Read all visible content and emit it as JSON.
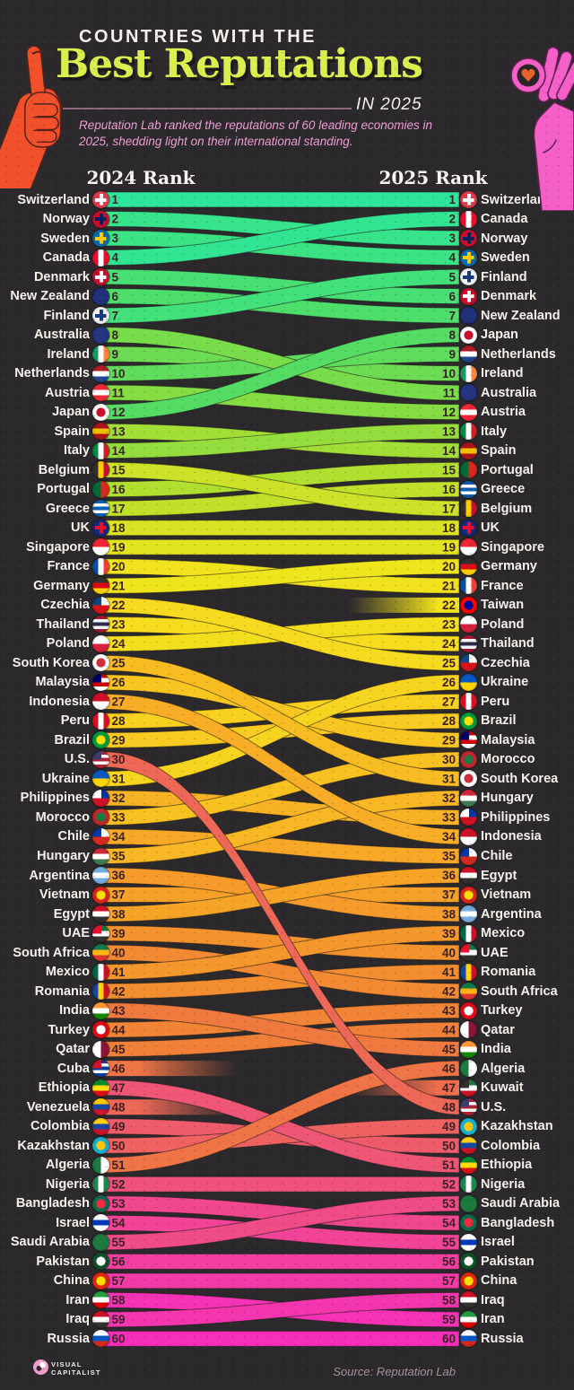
{
  "header": {
    "kicker": "COUNTRIES WITH THE",
    "title": "Best Reputations",
    "year_label": "IN 2025",
    "subtitle": "Reputation Lab ranked the reputations of 60 leading economies in 2025, shedding light on their international standing."
  },
  "columns": {
    "left": "2024 Rank",
    "right": "2025 Rank"
  },
  "footer": {
    "brand_line1": "VISUAL",
    "brand_line2": "CAPITALIST",
    "source": "Source: Reputation Lab"
  },
  "colors": {
    "background": "#2b292b",
    "title": "#dcee4e",
    "kicker": "#f3efe9",
    "subtitle": "#ec9fd3",
    "country_label": "#f5f2ec",
    "rank_number": "#3b2227",
    "ribbon_outline": "rgba(28,22,24,0.55)",
    "hand_left": "#f1502a",
    "hand_right": "#f55fc8",
    "heart": "#e8622c",
    "ramp": [
      [
        1,
        "#2de69b"
      ],
      [
        4,
        "#3ce384"
      ],
      [
        8,
        "#54dc64"
      ],
      [
        12,
        "#85dc43"
      ],
      [
        16,
        "#c0e02a"
      ],
      [
        20,
        "#efe51c"
      ],
      [
        25,
        "#f6da1f"
      ],
      [
        30,
        "#f8c122"
      ],
      [
        35,
        "#f7a827"
      ],
      [
        40,
        "#f3932d"
      ],
      [
        44,
        "#f08038"
      ],
      [
        47,
        "#ee6e4d"
      ],
      [
        50,
        "#ee5c6c"
      ],
      [
        53,
        "#ef4b87"
      ],
      [
        56,
        "#f23f9f"
      ],
      [
        58,
        "#f436ae"
      ],
      [
        60,
        "#f62eba"
      ]
    ]
  },
  "chart_data": {
    "type": "bump",
    "columns": [
      "2024 Rank",
      "2025 Rank"
    ],
    "note": "r2024/r2025 are ranks in each year; null means not ranked that year",
    "entries": [
      {
        "country": "Switzerland",
        "r2024": 1,
        "r2025": 1,
        "flag": {
          "t": "x",
          "c": [
            "#e03b4a",
            "#ffffff"
          ]
        }
      },
      {
        "country": "Norway",
        "r2024": 2,
        "r2025": 3,
        "flag": {
          "t": "x",
          "c": [
            "#c8102e",
            "#00205b"
          ]
        }
      },
      {
        "country": "Sweden",
        "r2024": 3,
        "r2025": 4,
        "flag": {
          "t": "x",
          "c": [
            "#0d6aa8",
            "#fecb00"
          ]
        }
      },
      {
        "country": "Canada",
        "r2024": 4,
        "r2025": 2,
        "flag": {
          "t": "v",
          "c": [
            "#e8112d",
            "#ffffff",
            "#e8112d"
          ]
        }
      },
      {
        "country": "Denmark",
        "r2024": 5,
        "r2025": 6,
        "flag": {
          "t": "x",
          "c": [
            "#c8102e",
            "#ffffff"
          ]
        }
      },
      {
        "country": "New Zealand",
        "r2024": 6,
        "r2025": 7,
        "flag": {
          "t": "s",
          "c": [
            "#21317c"
          ]
        }
      },
      {
        "country": "Finland",
        "r2024": 7,
        "r2025": 5,
        "flag": {
          "t": "x",
          "c": [
            "#f2f2f2",
            "#173a7c"
          ]
        }
      },
      {
        "country": "Australia",
        "r2024": 8,
        "r2025": 11,
        "flag": {
          "t": "s",
          "c": [
            "#25357f"
          ]
        }
      },
      {
        "country": "Ireland",
        "r2024": 9,
        "r2025": 10,
        "flag": {
          "t": "v",
          "c": [
            "#169b62",
            "#ffffff",
            "#ff883e"
          ]
        }
      },
      {
        "country": "Netherlands",
        "r2024": 10,
        "r2025": 9,
        "flag": {
          "t": "h",
          "c": [
            "#ae1c28",
            "#ffffff",
            "#21468b"
          ]
        }
      },
      {
        "country": "Austria",
        "r2024": 11,
        "r2025": 12,
        "flag": {
          "t": "h",
          "c": [
            "#ed2939",
            "#ffffff",
            "#ed2939"
          ]
        }
      },
      {
        "country": "Japan",
        "r2024": 12,
        "r2025": 8,
        "flag": {
          "t": "d",
          "c": [
            "#ffffff",
            "#c8102e"
          ]
        }
      },
      {
        "country": "Spain",
        "r2024": 13,
        "r2025": 14,
        "flag": {
          "t": "h",
          "c": [
            "#aa151b",
            "#f1bf00",
            "#aa151b"
          ]
        }
      },
      {
        "country": "Italy",
        "r2024": 14,
        "r2025": 13,
        "flag": {
          "t": "v",
          "c": [
            "#008c45",
            "#ffffff",
            "#cd212a"
          ]
        }
      },
      {
        "country": "Belgium",
        "r2024": 15,
        "r2025": 17,
        "flag": {
          "t": "v",
          "c": [
            "#33312e",
            "#ffcd00",
            "#c8102e"
          ]
        }
      },
      {
        "country": "Portugal",
        "r2024": 16,
        "r2025": 15,
        "flag": {
          "t": "v",
          "c": [
            "#046a38",
            "#da291c"
          ]
        }
      },
      {
        "country": "Greece",
        "r2024": 17,
        "r2025": 16,
        "flag": {
          "t": "h",
          "c": [
            "#0d5eaf",
            "#ffffff",
            "#0d5eaf",
            "#ffffff",
            "#0d5eaf"
          ]
        }
      },
      {
        "country": "UK",
        "r2024": 18,
        "r2025": 18,
        "flag": {
          "t": "x",
          "c": [
            "#13297c",
            "#e8112d"
          ]
        }
      },
      {
        "country": "Singapore",
        "r2024": 19,
        "r2025": 19,
        "flag": {
          "t": "h",
          "c": [
            "#ee2536",
            "#ffffff"
          ]
        }
      },
      {
        "country": "France",
        "r2024": 20,
        "r2025": 21,
        "flag": {
          "t": "v",
          "c": [
            "#0a4fa0",
            "#ffffff",
            "#ef4135"
          ]
        }
      },
      {
        "country": "Germany",
        "r2024": 21,
        "r2025": 20,
        "flag": {
          "t": "h",
          "c": [
            "#33312e",
            "#dd0b15",
            "#ffce00"
          ]
        }
      },
      {
        "country": "Czechia",
        "r2024": 22,
        "r2025": 25,
        "flag": {
          "t": "h",
          "c": [
            "#ffffff",
            "#d7141a"
          ],
          "k": "#11457e"
        }
      },
      {
        "country": "Thailand",
        "r2024": 23,
        "r2025": 24,
        "flag": {
          "t": "h",
          "c": [
            "#a51931",
            "#f4f5f8",
            "#2d2a4a",
            "#f4f5f8",
            "#a51931"
          ]
        }
      },
      {
        "country": "Poland",
        "r2024": 24,
        "r2025": 23,
        "flag": {
          "t": "h",
          "c": [
            "#ffffff",
            "#d4213d"
          ]
        }
      },
      {
        "country": "South Korea",
        "r2024": 25,
        "r2025": 31,
        "flag": {
          "t": "d",
          "c": [
            "#ffffff",
            "#cd2e3a"
          ]
        }
      },
      {
        "country": "Malaysia",
        "r2024": 26,
        "r2025": 29,
        "flag": {
          "t": "h",
          "c": [
            "#cc0001",
            "#ffffff",
            "#cc0001",
            "#ffffff"
          ],
          "k": "#010066"
        }
      },
      {
        "country": "Indonesia",
        "r2024": 27,
        "r2025": 34,
        "flag": {
          "t": "h",
          "c": [
            "#ce1126",
            "#ffffff"
          ]
        }
      },
      {
        "country": "Peru",
        "r2024": 28,
        "r2025": 27,
        "flag": {
          "t": "v",
          "c": [
            "#d91023",
            "#ffffff",
            "#d91023"
          ]
        }
      },
      {
        "country": "Brazil",
        "r2024": 29,
        "r2025": 28,
        "flag": {
          "t": "d",
          "c": [
            "#009c3b",
            "#ffdf00"
          ]
        }
      },
      {
        "country": "U.S.",
        "r2024": 30,
        "r2025": 48,
        "flag": {
          "t": "h",
          "c": [
            "#b22234",
            "#ffffff",
            "#b22234",
            "#ffffff",
            "#b22234"
          ],
          "k": "#3c3b6e"
        }
      },
      {
        "country": "Ukraine",
        "r2024": 31,
        "r2025": 26,
        "flag": {
          "t": "h",
          "c": [
            "#0a57c2",
            "#ffd500"
          ]
        }
      },
      {
        "country": "Philippines",
        "r2024": 32,
        "r2025": 33,
        "flag": {
          "t": "h",
          "c": [
            "#0038a8",
            "#ce1126"
          ],
          "k": "#ffffff"
        }
      },
      {
        "country": "Morocco",
        "r2024": 33,
        "r2025": 30,
        "flag": {
          "t": "d",
          "c": [
            "#c1272d",
            "#1d7a43"
          ]
        }
      },
      {
        "country": "Chile",
        "r2024": 34,
        "r2025": 35,
        "flag": {
          "t": "h",
          "c": [
            "#ffffff",
            "#d52b1e"
          ],
          "k": "#0039a6"
        }
      },
      {
        "country": "Hungary",
        "r2024": 35,
        "r2025": 32,
        "flag": {
          "t": "h",
          "c": [
            "#ce2939",
            "#ffffff",
            "#3e7a52"
          ]
        }
      },
      {
        "country": "Argentina",
        "r2024": 36,
        "r2025": 38,
        "flag": {
          "t": "h",
          "c": [
            "#74acdf",
            "#ffffff",
            "#74acdf"
          ]
        }
      },
      {
        "country": "Vietnam",
        "r2024": 37,
        "r2025": 37,
        "flag": {
          "t": "d",
          "c": [
            "#da251d",
            "#ffde00"
          ]
        }
      },
      {
        "country": "Egypt",
        "r2024": 38,
        "r2025": 36,
        "flag": {
          "t": "h",
          "c": [
            "#ce1126",
            "#ffffff",
            "#33312e"
          ]
        }
      },
      {
        "country": "UAE",
        "r2024": 39,
        "r2025": 40,
        "flag": {
          "t": "h",
          "c": [
            "#0f7a40",
            "#ffffff",
            "#33312e"
          ],
          "k": "#e8112d"
        }
      },
      {
        "country": "South Africa",
        "r2024": 40,
        "r2025": 42,
        "flag": {
          "t": "h",
          "c": [
            "#0f7a4b",
            "#ffb612",
            "#de3831"
          ]
        }
      },
      {
        "country": "Mexico",
        "r2024": 41,
        "r2025": 39,
        "flag": {
          "t": "v",
          "c": [
            "#006847",
            "#ffffff",
            "#ce1126"
          ]
        }
      },
      {
        "country": "Romania",
        "r2024": 42,
        "r2025": 41,
        "flag": {
          "t": "v",
          "c": [
            "#1747a0",
            "#fcd116",
            "#ce1126"
          ]
        }
      },
      {
        "country": "India",
        "r2024": 43,
        "r2025": 45,
        "flag": {
          "t": "h",
          "c": [
            "#ff9933",
            "#ffffff",
            "#138808"
          ]
        }
      },
      {
        "country": "Turkey",
        "r2024": 44,
        "r2025": 43,
        "flag": {
          "t": "d",
          "c": [
            "#e30a17",
            "#ffffff"
          ]
        }
      },
      {
        "country": "Qatar",
        "r2024": 45,
        "r2025": 44,
        "flag": {
          "t": "v",
          "c": [
            "#ffffff",
            "#8a1538"
          ]
        }
      },
      {
        "country": "Cuba",
        "r2024": 46,
        "r2025": null,
        "flag": {
          "t": "h",
          "c": [
            "#0a3f9e",
            "#ffffff",
            "#0a3f9e",
            "#ffffff",
            "#0a3f9e"
          ],
          "k": "#cf142b"
        }
      },
      {
        "country": "Ethiopia",
        "r2024": 47,
        "r2025": 51,
        "flag": {
          "t": "h",
          "c": [
            "#078930",
            "#fcdd09",
            "#da121a"
          ]
        }
      },
      {
        "country": "Venezuela",
        "r2024": 48,
        "r2025": null,
        "flag": {
          "t": "h",
          "c": [
            "#ffcc00",
            "#1847a0",
            "#cf142b"
          ]
        }
      },
      {
        "country": "Colombia",
        "r2024": 49,
        "r2025": 50,
        "flag": {
          "t": "h",
          "c": [
            "#fcd116",
            "#1747a0",
            "#ce1126"
          ]
        }
      },
      {
        "country": "Kazakhstan",
        "r2024": 50,
        "r2025": 49,
        "flag": {
          "t": "d",
          "c": [
            "#18b2cf",
            "#fec50c"
          ]
        }
      },
      {
        "country": "Algeria",
        "r2024": 51,
        "r2025": 46,
        "flag": {
          "t": "v",
          "c": [
            "#1d7a43",
            "#ffffff"
          ]
        }
      },
      {
        "country": "Nigeria",
        "r2024": 52,
        "r2025": 52,
        "flag": {
          "t": "v",
          "c": [
            "#1f8751",
            "#ffffff",
            "#1f8751"
          ]
        }
      },
      {
        "country": "Bangladesh",
        "r2024": 53,
        "r2025": 54,
        "flag": {
          "t": "d",
          "c": [
            "#0f6a4e",
            "#f42a41"
          ]
        }
      },
      {
        "country": "Israel",
        "r2024": 54,
        "r2025": 55,
        "flag": {
          "t": "h",
          "c": [
            "#ffffff",
            "#0038b8",
            "#ffffff"
          ]
        }
      },
      {
        "country": "Saudi Arabia",
        "r2024": 55,
        "r2025": 53,
        "flag": {
          "t": "s",
          "c": [
            "#1d7a3f"
          ]
        }
      },
      {
        "country": "Pakistan",
        "r2024": 56,
        "r2025": 56,
        "flag": {
          "t": "d",
          "c": [
            "#0f5128",
            "#ffffff"
          ]
        }
      },
      {
        "country": "China",
        "r2024": 57,
        "r2025": 57,
        "flag": {
          "t": "d",
          "c": [
            "#de2910",
            "#ffde00"
          ]
        }
      },
      {
        "country": "Iran",
        "r2024": 58,
        "r2025": 59,
        "flag": {
          "t": "h",
          "c": [
            "#239f40",
            "#ffffff",
            "#da0000"
          ]
        }
      },
      {
        "country": "Iraq",
        "r2024": 59,
        "r2025": 58,
        "flag": {
          "t": "h",
          "c": [
            "#ce1126",
            "#ffffff",
            "#33312e"
          ]
        }
      },
      {
        "country": "Russia",
        "r2024": 60,
        "r2025": 60,
        "flag": {
          "t": "h",
          "c": [
            "#ffffff",
            "#0a57c2",
            "#d52b1e"
          ]
        }
      },
      {
        "country": "Taiwan",
        "r2024": null,
        "r2025": 22,
        "flag": {
          "t": "d",
          "c": [
            "#fe0000",
            "#000095"
          ]
        }
      },
      {
        "country": "Kuwait",
        "r2024": null,
        "r2025": 47,
        "flag": {
          "t": "h",
          "c": [
            "#1d7a43",
            "#ffffff",
            "#ce1126"
          ],
          "k": "#33312e"
        }
      }
    ]
  }
}
